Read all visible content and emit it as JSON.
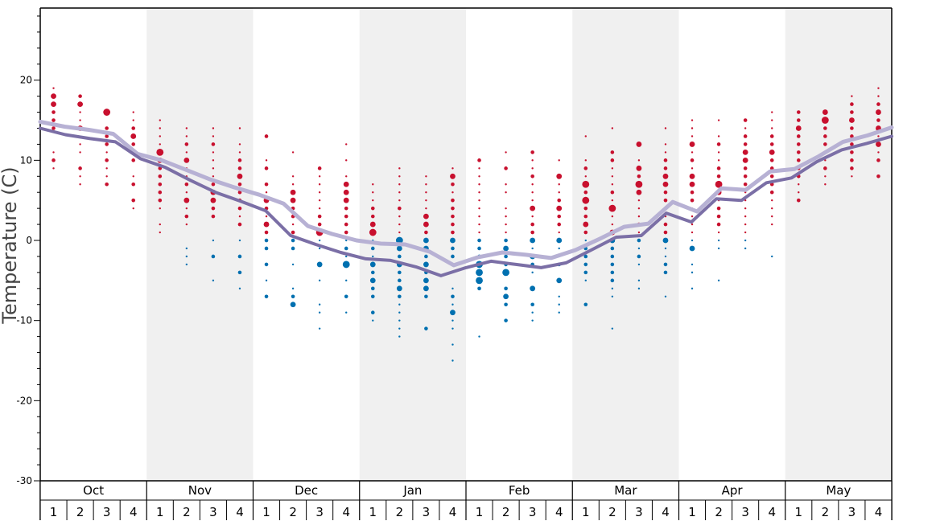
{
  "chart_data": {
    "type": "scatter",
    "ylabel": "Temperature (C)",
    "ylim": [
      -30,
      29
    ],
    "y_ticks": [
      20,
      10,
      0,
      -10,
      -20,
      -30
    ],
    "months": [
      "Oct",
      "Nov",
      "Dec",
      "Jan",
      "Feb",
      "Mar",
      "Apr",
      "May"
    ],
    "weeks": [
      "1",
      "2",
      "3",
      "4"
    ],
    "colors": {
      "warm_dot": "#c8102e",
      "cold_dot": "#0070b0",
      "line_light": "#b7b1d4",
      "line_dark": "#7b6fa6",
      "band_shade": "#f0f0f0"
    },
    "series": [
      {
        "values": [
          14.8,
          14.2,
          13.8,
          13.3,
          10.8,
          10.0,
          8.8,
          7.6,
          6.6,
          5.7,
          4.6,
          1.8,
          0.8,
          0.0,
          -0.4,
          -0.5,
          -1.4,
          -3.1,
          -2.1,
          -1.5,
          -1.8,
          -2.2,
          -1.2,
          0.2,
          1.7,
          2.1,
          4.8,
          3.6,
          6.5,
          6.3,
          8.6,
          8.9,
          10.5,
          12.3,
          13.1,
          14.1
        ]
      },
      {
        "values": [
          14.0,
          13.2,
          12.7,
          12.3,
          10.2,
          9.1,
          7.5,
          6.0,
          4.9,
          3.7,
          0.6,
          -0.5,
          -1.5,
          -2.3,
          -2.5,
          -3.3,
          -4.4,
          -3.4,
          -2.6,
          -3.0,
          -3.4,
          -2.8,
          -1.2,
          0.4,
          0.6,
          3.4,
          2.3,
          5.2,
          5.0,
          7.2,
          7.8,
          9.8,
          11.3,
          12.1,
          13.0
        ]
      }
    ],
    "dot_weeks": [
      {
        "v": [
          19,
          18,
          17,
          16,
          15,
          14,
          11,
          10,
          9
        ],
        "s": [
          1,
          3,
          3,
          2,
          2,
          2,
          1,
          2,
          1
        ]
      },
      {
        "v": [
          18,
          17,
          16,
          15,
          14,
          12,
          11,
          9,
          8,
          7
        ],
        "s": [
          2,
          3,
          1,
          1,
          3,
          1,
          1,
          2,
          1,
          1
        ]
      },
      {
        "v": [
          16,
          14,
          13,
          12,
          11,
          10,
          9,
          8,
          7
        ],
        "s": [
          4,
          2,
          2,
          2,
          1,
          2,
          1,
          1,
          2
        ]
      },
      {
        "v": [
          16,
          15,
          14,
          13,
          12,
          11,
          10,
          8,
          7,
          5,
          4
        ],
        "s": [
          1,
          1,
          2,
          3,
          2,
          3,
          2,
          1,
          2,
          2,
          1
        ]
      },
      {
        "v": [
          15,
          14,
          13,
          12,
          11,
          10,
          9,
          8,
          7,
          6,
          5,
          4,
          2,
          1
        ],
        "s": [
          1,
          1,
          1,
          1,
          4,
          3,
          2,
          2,
          2,
          2,
          2,
          1,
          1,
          1
        ]
      },
      {
        "v": [
          14,
          13,
          12,
          11,
          10,
          9,
          8,
          7,
          6,
          5,
          4,
          3,
          2,
          -1,
          -2,
          -3
        ],
        "s": [
          1,
          1,
          2,
          1,
          3,
          1,
          1,
          2,
          1,
          3,
          1,
          2,
          1,
          1,
          1,
          1
        ]
      },
      {
        "v": [
          14,
          13,
          12,
          11,
          10,
          9,
          8,
          7,
          6,
          5,
          4,
          3,
          0,
          -2,
          -5
        ],
        "s": [
          1,
          1,
          2,
          1,
          1,
          1,
          1,
          2,
          3,
          3,
          2,
          2,
          1,
          2,
          1
        ]
      },
      {
        "v": [
          14,
          12,
          11,
          10,
          9,
          8,
          7,
          6,
          5,
          4,
          3,
          2,
          0,
          -2,
          -4,
          -6
        ],
        "s": [
          1,
          1,
          1,
          2,
          2,
          3,
          2,
          2,
          2,
          2,
          1,
          2,
          1,
          2,
          2,
          1
        ]
      },
      {
        "v": [
          13,
          10,
          9,
          7,
          6,
          5,
          4,
          3,
          2,
          1,
          0,
          -1,
          -3,
          -5,
          -7
        ],
        "s": [
          2,
          1,
          2,
          2,
          1,
          3,
          2,
          1,
          3,
          2,
          2,
          2,
          2,
          1,
          2
        ]
      },
      {
        "v": [
          11,
          8,
          7,
          6,
          5,
          4,
          3,
          2,
          1,
          0,
          -1,
          -3,
          -6,
          -7,
          -8
        ],
        "s": [
          1,
          1,
          1,
          3,
          3,
          2,
          2,
          1,
          2,
          2,
          2,
          1,
          1,
          2,
          3
        ]
      },
      {
        "v": [
          9,
          8,
          7,
          6,
          5,
          4,
          3,
          2,
          1,
          0,
          -1,
          -3,
          -5,
          -8,
          -9,
          -11
        ],
        "s": [
          2,
          1,
          1,
          1,
          1,
          1,
          2,
          2,
          4,
          1,
          1,
          3,
          1,
          1,
          1,
          1
        ]
      },
      {
        "v": [
          12,
          10,
          8,
          7,
          6,
          5,
          4,
          3,
          2,
          1,
          0,
          -1,
          -2,
          -3,
          -5,
          -7,
          -9
        ],
        "s": [
          1,
          1,
          1,
          3,
          3,
          3,
          2,
          2,
          2,
          2,
          1,
          2,
          1,
          4,
          1,
          2,
          1
        ]
      },
      {
        "v": [
          7,
          6,
          5,
          4,
          3,
          2,
          1,
          0,
          -1,
          -2,
          -3,
          -4,
          -5,
          -6,
          -7,
          -9,
          -10
        ],
        "s": [
          1,
          1,
          1,
          2,
          2,
          3,
          4,
          1,
          2,
          1,
          3,
          2,
          3,
          2,
          2,
          2,
          1
        ]
      },
      {
        "v": [
          9,
          8,
          7,
          6,
          5,
          4,
          3,
          2,
          1,
          0,
          -1,
          -2,
          -3,
          -4,
          -5,
          -6,
          -7,
          -8,
          -9,
          -10,
          -11,
          -12
        ],
        "s": [
          1,
          1,
          1,
          1,
          1,
          2,
          1,
          1,
          1,
          4,
          3,
          2,
          3,
          2,
          2,
          3,
          2,
          1,
          1,
          1,
          1,
          1
        ]
      },
      {
        "v": [
          8,
          7,
          6,
          5,
          4,
          3,
          2,
          1,
          0,
          -1,
          -2,
          -3,
          -4,
          -5,
          -6,
          -7,
          -11
        ],
        "s": [
          1,
          1,
          1,
          1,
          1,
          3,
          3,
          2,
          3,
          3,
          2,
          3,
          2,
          3,
          3,
          2,
          2
        ]
      },
      {
        "v": [
          9,
          8,
          7,
          6,
          5,
          4,
          3,
          2,
          1,
          0,
          -1,
          -2,
          -3,
          -6,
          -7,
          -8,
          -9,
          -10,
          -11,
          -13,
          -15
        ],
        "s": [
          1,
          3,
          2,
          1,
          2,
          2,
          2,
          2,
          2,
          3,
          2,
          2,
          1,
          1,
          2,
          1,
          3,
          1,
          1,
          1,
          1
        ]
      },
      {
        "v": [
          10,
          9,
          8,
          7,
          6,
          5,
          4,
          3,
          2,
          1,
          0,
          -1,
          -2,
          -3,
          -4,
          -5,
          -6,
          -12
        ],
        "s": [
          2,
          1,
          1,
          1,
          1,
          1,
          1,
          1,
          1,
          1,
          2,
          2,
          2,
          4,
          4,
          4,
          2,
          1
        ]
      },
      {
        "v": [
          11,
          9,
          7,
          6,
          4,
          3,
          2,
          1,
          0,
          -1,
          -2,
          -3,
          -4,
          -6,
          -7,
          -8,
          -10
        ],
        "s": [
          1,
          2,
          1,
          1,
          1,
          1,
          1,
          1,
          2,
          3,
          2,
          2,
          4,
          2,
          3,
          2,
          2
        ]
      },
      {
        "v": [
          11,
          10,
          9,
          8,
          7,
          6,
          5,
          4,
          3,
          2,
          1,
          0,
          -1,
          -2,
          -3,
          -4,
          -6,
          -8,
          -9,
          -10
        ],
        "s": [
          2,
          1,
          1,
          2,
          1,
          1,
          1,
          3,
          1,
          2,
          2,
          3,
          1,
          3,
          2,
          1,
          3,
          2,
          1,
          1
        ]
      },
      {
        "v": [
          10,
          8,
          7,
          6,
          5,
          4,
          3,
          2,
          1,
          0,
          -1,
          -2,
          -3,
          -5,
          -7,
          -8,
          -9
        ],
        "s": [
          1,
          3,
          1,
          1,
          2,
          3,
          2,
          2,
          1,
          3,
          1,
          1,
          2,
          3,
          1,
          1,
          1
        ]
      },
      {
        "v": [
          13,
          10,
          9,
          8,
          7,
          6,
          5,
          4,
          3,
          2,
          1,
          0,
          -1,
          -2,
          -3,
          -4,
          -5,
          -8
        ],
        "s": [
          1,
          1,
          2,
          1,
          4,
          2,
          4,
          2,
          2,
          3,
          2,
          1,
          2,
          2,
          2,
          2,
          1,
          2
        ]
      },
      {
        "v": [
          14,
          11,
          10,
          9,
          8,
          7,
          6,
          5,
          4,
          3,
          2,
          1,
          0,
          -1,
          -2,
          -3,
          -4,
          -5,
          -6,
          -7,
          -11
        ],
        "s": [
          1,
          2,
          2,
          1,
          1,
          1,
          2,
          1,
          4,
          1,
          1,
          3,
          3,
          2,
          2,
          2,
          2,
          2,
          1,
          1,
          1
        ]
      },
      {
        "v": [
          12,
          10,
          9,
          8,
          7,
          6,
          5,
          4,
          3,
          2,
          1,
          0,
          -1,
          -2,
          -3,
          -5,
          -6
        ],
        "s": [
          3,
          1,
          3,
          2,
          4,
          3,
          1,
          1,
          1,
          2,
          1,
          2,
          1,
          2,
          1,
          1,
          1
        ]
      },
      {
        "v": [
          14,
          12,
          11,
          10,
          9,
          8,
          7,
          6,
          5,
          4,
          3,
          2,
          1,
          0,
          -1,
          -2,
          -3,
          -4,
          -7
        ],
        "s": [
          1,
          1,
          1,
          2,
          2,
          3,
          3,
          2,
          2,
          2,
          1,
          2,
          2,
          3,
          1,
          1,
          2,
          2,
          1
        ]
      },
      {
        "v": [
          15,
          14,
          13,
          12,
          11,
          10,
          9,
          8,
          7,
          6,
          5,
          4,
          3,
          2,
          1,
          0,
          -1,
          -3,
          -4,
          -6
        ],
        "s": [
          1,
          1,
          1,
          3,
          1,
          2,
          1,
          3,
          3,
          2,
          2,
          1,
          1,
          1,
          1,
          1,
          3,
          1,
          1,
          1
        ]
      },
      {
        "v": [
          15,
          13,
          12,
          11,
          10,
          9,
          8,
          7,
          6,
          5,
          4,
          3,
          2,
          1,
          0,
          -1,
          -5
        ],
        "s": [
          1,
          1,
          2,
          1,
          1,
          2,
          2,
          4,
          3,
          1,
          2,
          2,
          2,
          1,
          1,
          1,
          1
        ]
      },
      {
        "v": [
          15,
          14,
          13,
          12,
          11,
          10,
          9,
          8,
          7,
          6,
          5,
          4,
          3,
          2,
          1,
          0,
          -1
        ],
        "s": [
          2,
          1,
          2,
          2,
          3,
          3,
          2,
          2,
          2,
          1,
          1,
          1,
          1,
          1,
          1,
          1,
          1
        ]
      },
      {
        "v": [
          16,
          15,
          14,
          13,
          12,
          11,
          10,
          9,
          8,
          7,
          6,
          5,
          4,
          3,
          2,
          -2
        ],
        "s": [
          1,
          1,
          1,
          2,
          2,
          3,
          2,
          2,
          2,
          2,
          2,
          1,
          1,
          1,
          1,
          1
        ]
      },
      {
        "v": [
          16,
          15,
          14,
          13,
          12,
          11,
          10,
          9,
          8,
          7,
          6,
          5
        ],
        "s": [
          2,
          2,
          3,
          2,
          2,
          2,
          2,
          2,
          2,
          1,
          1,
          2
        ]
      },
      {
        "v": [
          16,
          15,
          14,
          13,
          12,
          11,
          10,
          9,
          8,
          7
        ],
        "s": [
          3,
          4,
          2,
          2,
          2,
          1,
          1,
          2,
          1,
          1
        ]
      },
      {
        "v": [
          18,
          17,
          16,
          15,
          14,
          13,
          12,
          11,
          10,
          9,
          8
        ],
        "s": [
          1,
          2,
          2,
          3,
          2,
          2,
          2,
          2,
          2,
          2,
          1
        ]
      },
      {
        "v": [
          19,
          18,
          17,
          16,
          15,
          14,
          13,
          12,
          11,
          10,
          8
        ],
        "s": [
          1,
          1,
          2,
          3,
          2,
          3,
          1,
          3,
          1,
          2,
          2
        ]
      }
    ]
  }
}
